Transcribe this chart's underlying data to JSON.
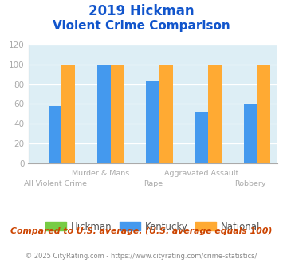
{
  "title_line1": "2019 Hickman",
  "title_line2": "Violent Crime Comparison",
  "categories": [
    "All Violent Crime",
    "Murder & Mans...",
    "Rape",
    "Aggravated Assault",
    "Robbery"
  ],
  "hickman": [
    0,
    0,
    0,
    0,
    0
  ],
  "kentucky": [
    58,
    99,
    83,
    52,
    60
  ],
  "national": [
    100,
    100,
    100,
    100,
    100
  ],
  "hickman_color": "#77cc44",
  "kentucky_color": "#4499ee",
  "national_color": "#ffaa33",
  "ylim": [
    0,
    120
  ],
  "yticks": [
    0,
    20,
    40,
    60,
    80,
    100,
    120
  ],
  "bg_color": "#ddeef5",
  "title_color": "#1155cc",
  "footer_color": "#cc4400",
  "copyright_color": "#888888",
  "tick_color": "#aaaaaa",
  "grid_color": "#ffffff",
  "top_labels": {
    "1": "Murder & Mans...",
    "3": "Aggravated Assault"
  },
  "bottom_labels": {
    "0": "All Violent Crime",
    "2": "Rape",
    "4": "Robbery"
  },
  "legend_labels": [
    "Hickman",
    "Kentucky",
    "National"
  ],
  "footer_text": "Compared to U.S. average. (U.S. average equals 100)",
  "copyright_text": "© 2025 CityRating.com - https://www.cityrating.com/crime-statistics/"
}
